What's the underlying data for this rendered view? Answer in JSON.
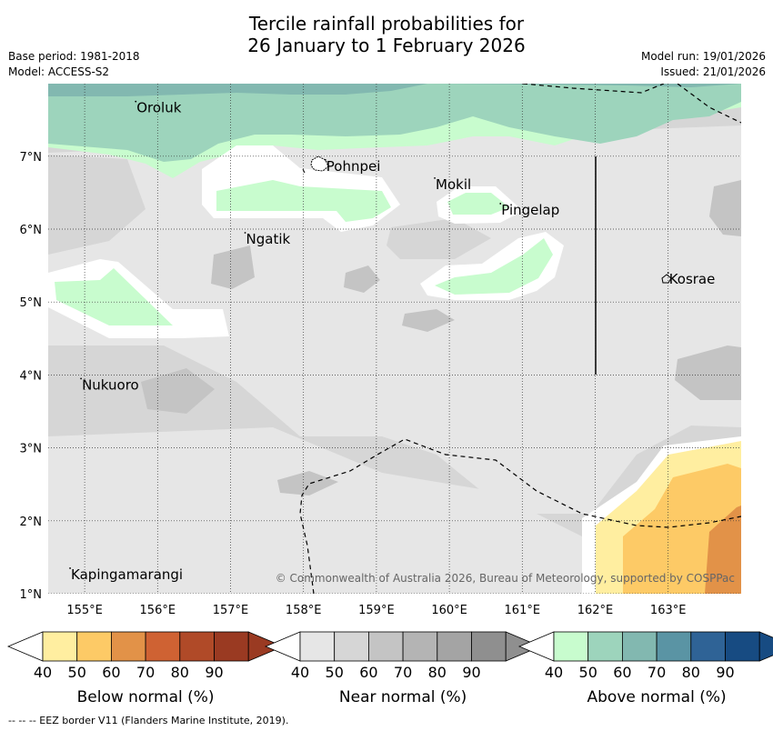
{
  "title": {
    "line1": "Tercile rainfall probabilities for",
    "line2": "26 January to 1 February 2026"
  },
  "meta": {
    "base_period": "Base period: 1981-2018",
    "model": "Model: ACCESS-S2",
    "model_run": "Model run: 19/01/2026",
    "issued": "Issued: 21/01/2026"
  },
  "map": {
    "lon_labels": [
      "155°E",
      "156°E",
      "157°E",
      "158°E",
      "159°E",
      "160°E",
      "161°E",
      "162°E",
      "163°E"
    ],
    "lat_labels": [
      "7°N",
      "6°N",
      "5°N",
      "4°N",
      "3°N",
      "2°N",
      "1°N"
    ],
    "places": [
      {
        "name": "Oroluk",
        "lon": 155.7,
        "lat": 7.65
      },
      {
        "name": "Pohnpei",
        "lon": 158.3,
        "lat": 6.85
      },
      {
        "name": "Mokil",
        "lon": 159.8,
        "lat": 6.6
      },
      {
        "name": "Pingelap",
        "lon": 160.7,
        "lat": 6.25
      },
      {
        "name": "Ngatik",
        "lon": 157.2,
        "lat": 5.85
      },
      {
        "name": "Kosrae",
        "lon": 163.0,
        "lat": 5.3
      },
      {
        "name": "Nukuoro",
        "lon": 154.95,
        "lat": 3.85
      },
      {
        "name": "Kapingamarangi",
        "lon": 154.8,
        "lat": 1.25
      }
    ],
    "copyright": "© Commonwealth of Australia 2026, Bureau of Meteorology, supported by COSPPac"
  },
  "legends": [
    {
      "name": "below",
      "title": "Below normal (%)",
      "colors": [
        "#ffeea0",
        "#fdca66",
        "#e29248",
        "#cf6233",
        "#b04a28",
        "#9a3a22"
      ]
    },
    {
      "name": "near",
      "title": "Near normal (%)",
      "colors": [
        "#e6e6e6",
        "#d6d6d6",
        "#c4c4c4",
        "#b4b4b4",
        "#a4a4a4",
        "#8f8f8f"
      ]
    },
    {
      "name": "above",
      "title": "Above normal (%)",
      "colors": [
        "#c8fcce",
        "#9dd4bc",
        "#82b8b0",
        "#5a94a4",
        "#2f6396",
        "#174b82"
      ]
    }
  ],
  "legend_ticks": [
    "40",
    "50",
    "60",
    "70",
    "80",
    "90"
  ],
  "footnote": "--  --  -- EEZ border V11 (Flanders Marine Institute, 2019)."
}
